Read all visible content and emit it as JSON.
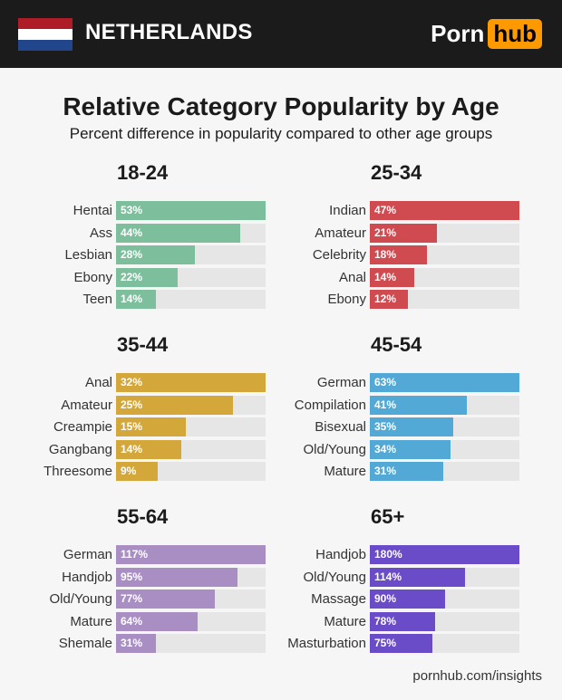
{
  "header": {
    "country": "NETHERLANDS",
    "logo_left": "Porn",
    "logo_right": "hub",
    "flag_colors": [
      "#ae1c28",
      "#ffffff",
      "#21468b"
    ],
    "logo_accent": "#ff9900"
  },
  "title": "Relative Category Popularity by Age",
  "subtitle": "Percent difference in popularity compared to other age groups",
  "footer": "pornhub.com/insights",
  "chart_data": [
    {
      "type": "bar",
      "orientation": "horizontal",
      "title": "18-24",
      "color": "#7dbf9c",
      "categories": [
        "Hentai",
        "Ass",
        "Lesbian",
        "Ebony",
        "Teen"
      ],
      "values": [
        53,
        44,
        28,
        22,
        14
      ],
      "labels": [
        "53%",
        "44%",
        "28%",
        "22%",
        "14%"
      ]
    },
    {
      "type": "bar",
      "orientation": "horizontal",
      "title": "25-34",
      "color": "#cf4b50",
      "categories": [
        "Indian",
        "Amateur",
        "Celebrity",
        "Anal",
        "Ebony"
      ],
      "values": [
        47,
        21,
        18,
        14,
        12
      ],
      "labels": [
        "47%",
        "21%",
        "18%",
        "14%",
        "12%"
      ]
    },
    {
      "type": "bar",
      "orientation": "horizontal",
      "title": "35-44",
      "color": "#d3a73a",
      "categories": [
        "Anal",
        "Amateur",
        "Creampie",
        "Gangbang",
        "Threesome"
      ],
      "values": [
        32,
        25,
        15,
        14,
        9
      ],
      "labels": [
        "32%",
        "25%",
        "15%",
        "14%",
        "9%"
      ]
    },
    {
      "type": "bar",
      "orientation": "horizontal",
      "title": "45-54",
      "color": "#52a9d6",
      "categories": [
        "German",
        "Compilation",
        "Bisexual",
        "Old/Young",
        "Mature"
      ],
      "values": [
        63,
        41,
        35,
        34,
        31
      ],
      "labels": [
        "63%",
        "41%",
        "35%",
        "34%",
        "31%"
      ]
    },
    {
      "type": "bar",
      "orientation": "horizontal",
      "title": "55-64",
      "color": "#a98ec4",
      "categories": [
        "German",
        "Handjob",
        "Old/Young",
        "Mature",
        "Shemale"
      ],
      "values": [
        117,
        95,
        77,
        64,
        31
      ],
      "labels": [
        "117%",
        "95%",
        "77%",
        "64%",
        "31%"
      ]
    },
    {
      "type": "bar",
      "orientation": "horizontal",
      "title": "65+",
      "color": "#6a4bc8",
      "categories": [
        "Handjob",
        "Old/Young",
        "Massage",
        "Mature",
        "Masturbation"
      ],
      "values": [
        180,
        114,
        90,
        78,
        75
      ],
      "labels": [
        "180%",
        "114%",
        "90%",
        "78%",
        "75%"
      ]
    }
  ]
}
